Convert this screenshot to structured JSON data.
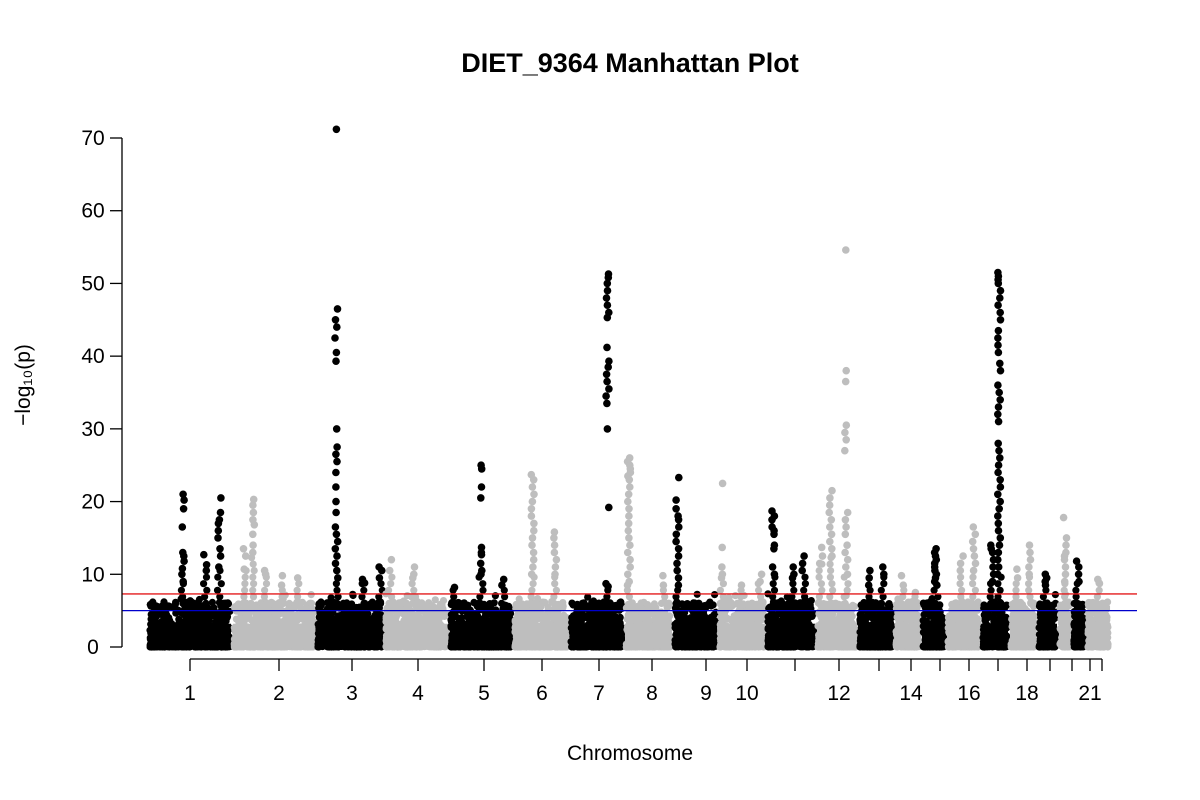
{
  "chart_data": {
    "type": "scatter",
    "title": "DIET_9364 Manhattan Plot",
    "xlabel": "Chromosome",
    "ylabel": "−log₁₀(p)",
    "ylim": [
      0,
      72
    ],
    "yticks": [
      0,
      10,
      20,
      30,
      40,
      50,
      60,
      70
    ],
    "grid": false,
    "legend": "none",
    "point_colors": {
      "odd": "#000000",
      "even": "#bebebe"
    },
    "threshold_lines": [
      {
        "value": 7.3,
        "color": "#e41a1c"
      },
      {
        "value": 5.0,
        "color": "#0000cc"
      }
    ],
    "chromosomes": [
      {
        "chr": "1",
        "label": "1",
        "peaks": [
          {
            "pos": 0.42,
            "values": [
              21.0,
              20.2,
              19.0,
              16.5,
              13.0,
              12.5,
              11.8,
              10.8,
              10.0,
              9.0
            ]
          },
          {
            "pos": 0.85,
            "values": [
              20.5,
              18.5,
              17.5,
              17.0,
              16.0,
              15.0,
              13.5,
              12.5,
              11.0
            ]
          },
          {
            "pos": 0.68,
            "values": [
              12.7,
              11.3,
              10.5
            ]
          }
        ]
      },
      {
        "chr": "2",
        "label": "2",
        "peaks": [
          {
            "pos": 0.15,
            "values": [
              13.5,
              12.5,
              10.7
            ]
          },
          {
            "pos": 0.25,
            "values": [
              20.3,
              19.5,
              18.5,
              17.5,
              16.8,
              15.5,
              14.0,
              13.0
            ]
          },
          {
            "pos": 0.4,
            "values": [
              10.5,
              10.0
            ]
          },
          {
            "pos": 0.6,
            "values": [
              9.8,
              8.5
            ]
          },
          {
            "pos": 0.78,
            "values": [
              9.5
            ]
          }
        ]
      },
      {
        "chr": "3",
        "label": "3",
        "peaks": [
          {
            "pos": 0.3,
            "values": [
              71.2,
              46.5,
              45.0,
              44.0,
              42.5,
              40.5,
              39.3,
              30.0,
              27.5,
              26.5,
              25.5,
              24.0,
              22.0,
              20.0,
              18.5,
              16.5,
              15.5,
              14.5,
              13.5,
              12.5,
              11.5,
              10.5,
              9.5
            ]
          },
          {
            "pos": 0.7,
            "values": [
              9.3,
              8.8
            ]
          },
          {
            "pos": 0.95,
            "values": [
              11.0,
              10.5,
              9.5
            ]
          }
        ]
      },
      {
        "chr": "4",
        "label": "4",
        "peaks": [
          {
            "pos": 0.1,
            "values": [
              12.0,
              10.5
            ]
          },
          {
            "pos": 0.45,
            "values": [
              11.0,
              10.0,
              9.5
            ]
          }
        ]
      },
      {
        "chr": "5",
        "label": "5",
        "peaks": [
          {
            "pos": 0.08,
            "values": [
              8.2
            ]
          },
          {
            "pos": 0.5,
            "values": [
              25.0,
              24.5,
              22.0,
              20.5,
              13.7,
              13.0,
              12.7,
              11.5,
              10.5,
              10.0
            ]
          },
          {
            "pos": 0.85,
            "values": [
              9.3,
              8.5
            ]
          }
        ]
      },
      {
        "chr": "6",
        "label": "6",
        "peaks": [
          {
            "pos": 0.35,
            "values": [
              23.7,
              23.0,
              22.0,
              21.0,
              20.0,
              19.0,
              18.0,
              17.0,
              16.0,
              15.0,
              14.0,
              13.0,
              12.0,
              11.0,
              10.0
            ]
          },
          {
            "pos": 0.75,
            "values": [
              15.8,
              15.0,
              14.0,
              13.0,
              12.0,
              11.0,
              10.0
            ]
          }
        ]
      },
      {
        "chr": "7",
        "label": "7",
        "peaks": [
          {
            "pos": 0.7,
            "values": [
              51.3,
              50.8,
              50.0,
              49.0,
              48.0,
              47.0,
              46.0,
              45.3,
              41.2,
              39.3,
              38.5,
              37.5,
              36.5,
              35.5,
              34.5,
              33.5,
              30.0,
              19.2,
              8.7,
              8.3
            ]
          }
        ]
      },
      {
        "chr": "8",
        "label": "8",
        "peaks": [
          {
            "pos": 0.1,
            "values": [
              26.0,
              25.5,
              25.0,
              24.5,
              24.0,
              23.5,
              23.0,
              22.0,
              21.0,
              20.0,
              19.0,
              18.0,
              17.0,
              16.0,
              15.0,
              14.0,
              13.0,
              12.0,
              11.0,
              10.0,
              9.0,
              8.5
            ]
          },
          {
            "pos": 0.8,
            "values": [
              9.8,
              8.5
            ]
          }
        ]
      },
      {
        "chr": "9",
        "label": "9",
        "peaks": [
          {
            "pos": 0.1,
            "values": [
              23.3,
              20.2,
              19.0,
              18.0,
              17.5,
              16.5,
              15.5,
              14.5,
              13.5,
              12.5,
              11.5,
              10.5,
              9.5,
              8.5
            ]
          },
          {
            "pos": 0.55,
            "values": [
              6.0
            ]
          }
        ]
      },
      {
        "chr": "10",
        "label": "10",
        "peaks": [
          {
            "pos": 0.08,
            "values": [
              22.5,
              13.7,
              11.0,
              10.0,
              9.5
            ]
          },
          {
            "pos": 0.5,
            "values": [
              8.5
            ]
          },
          {
            "pos": 0.88,
            "values": [
              10.0,
              9.0
            ]
          }
        ]
      },
      {
        "chr": "11",
        "label": "",
        "peaks": [
          {
            "pos": 0.15,
            "values": [
              18.7,
              18.0,
              17.5,
              16.5,
              16.0,
              15.5,
              14.0,
              13.5,
              11.0,
              10.0
            ]
          },
          {
            "pos": 0.55,
            "values": [
              11.0,
              10.0,
              9.5
            ]
          },
          {
            "pos": 0.75,
            "values": [
              12.5,
              11.5,
              10.5
            ]
          }
        ]
      },
      {
        "chr": "12",
        "label": "12",
        "peaks": [
          {
            "pos": 0.12,
            "values": [
              13.7,
              12.5,
              11.5
            ]
          },
          {
            "pos": 0.35,
            "values": [
              21.5,
              20.5,
              19.5,
              18.5,
              17.5,
              16.5,
              15.5,
              14.5,
              13.5,
              12.5
            ]
          },
          {
            "pos": 0.72,
            "values": [
              54.6,
              38.0,
              36.5,
              30.5,
              29.5,
              28.5,
              27.0,
              18.5,
              17.5,
              16.5,
              15.5,
              14.0,
              13.0,
              12.0,
              11.0,
              10.0
            ]
          }
        ]
      },
      {
        "chr": "13",
        "label": "",
        "peaks": [
          {
            "pos": 0.3,
            "values": [
              10.5,
              9.5,
              8.5
            ]
          },
          {
            "pos": 0.7,
            "values": [
              11.0,
              10.0
            ]
          }
        ]
      },
      {
        "chr": "14",
        "label": "14",
        "peaks": [
          {
            "pos": 0.3,
            "values": [
              9.8,
              8.5
            ]
          },
          {
            "pos": 0.75,
            "values": [
              7.5
            ]
          }
        ]
      },
      {
        "chr": "15",
        "label": "",
        "peaks": [
          {
            "pos": 0.6,
            "values": [
              13.5,
              13.0,
              12.5,
              12.0,
              11.5,
              11.0,
              10.5,
              10.0,
              9.5,
              9.0,
              8.5
            ]
          }
        ]
      },
      {
        "chr": "16",
        "label": "16",
        "peaks": [
          {
            "pos": 0.45,
            "values": [
              12.5,
              11.5,
              10.5
            ]
          },
          {
            "pos": 0.8,
            "values": [
              16.5,
              15.5,
              14.5,
              13.5,
              12.5,
              11.5,
              10.5
            ]
          }
        ]
      },
      {
        "chr": "17",
        "label": "",
        "peaks": [
          {
            "pos": 0.4,
            "values": [
              14.0,
              13.5,
              13.0,
              12.0,
              11.0,
              10.0,
              9.0
            ]
          },
          {
            "pos": 0.65,
            "values": [
              51.5,
              51.0,
              50.5,
              50.0,
              49.0,
              48.0,
              47.0,
              46.0,
              45.0,
              43.5,
              42.5,
              41.5,
              40.5,
              39.0,
              38.0,
              36.0,
              35.0,
              34.0,
              33.0,
              32.0,
              31.0,
              28.0,
              27.0,
              26.0,
              25.0,
              24.0,
              23.0,
              22.0,
              21.0,
              20.0,
              19.0,
              18.0,
              17.0,
              16.0,
              15.0,
              14.0,
              13.0,
              12.0,
              11.0,
              10.0
            ]
          }
        ]
      },
      {
        "chr": "18",
        "label": "18",
        "peaks": [
          {
            "pos": 0.3,
            "values": [
              10.7,
              9.5
            ]
          },
          {
            "pos": 0.75,
            "values": [
              14.0,
              13.0,
              12.0,
              11.0,
              10.0
            ]
          }
        ]
      },
      {
        "chr": "19",
        "label": "",
        "peaks": [
          {
            "pos": 0.4,
            "values": [
              10.0,
              9.5,
              9.0,
              8.5
            ]
          }
        ]
      },
      {
        "chr": "20",
        "label": "",
        "peaks": [
          {
            "pos": 0.5,
            "values": [
              17.8,
              15.0,
              14.0,
              13.0,
              12.5,
              12.0,
              11.0,
              10.0,
              9.0
            ]
          }
        ]
      },
      {
        "chr": "21",
        "label": "21",
        "peaks": [
          {
            "pos": 0.4,
            "values": [
              11.8,
              11.0,
              10.0,
              9.0
            ]
          }
        ]
      },
      {
        "chr": "22",
        "label": "",
        "peaks": [
          {
            "pos": 0.5,
            "values": [
              9.3,
              8.8
            ]
          }
        ]
      }
    ]
  }
}
